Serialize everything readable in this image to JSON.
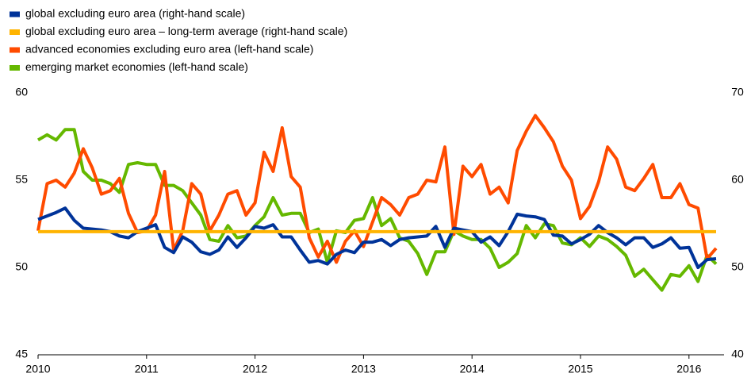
{
  "chart_data": {
    "type": "line",
    "categories": [
      "2010",
      null,
      null,
      null,
      null,
      null,
      null,
      null,
      null,
      null,
      null,
      null,
      "2011",
      null,
      null,
      null,
      null,
      null,
      null,
      null,
      null,
      null,
      null,
      null,
      "2012",
      null,
      null,
      null,
      null,
      null,
      null,
      null,
      null,
      null,
      null,
      null,
      "2013",
      null,
      null,
      null,
      null,
      null,
      null,
      null,
      null,
      null,
      null,
      null,
      "2014",
      null,
      null,
      null,
      null,
      null,
      null,
      null,
      null,
      null,
      null,
      null,
      "2015",
      null,
      null,
      null,
      null,
      null,
      null,
      null,
      null,
      null,
      null,
      null,
      "2016",
      null,
      null,
      null
    ],
    "ylim": [
      45,
      60
    ],
    "yticks": [
      45,
      50,
      55,
      60
    ],
    "y2lim": [
      40,
      70
    ],
    "y2ticks": [
      40,
      50,
      60,
      70
    ],
    "legend": "top-left",
    "series": [
      {
        "name": "global excluding euro area (right-hand scale)",
        "color": "#003399",
        "axis": "y2",
        "values": [
          55.5,
          55.9,
          56.3,
          56.8,
          55.4,
          54.5,
          54.4,
          54.3,
          54.1,
          53.6,
          53.4,
          54.1,
          54.5,
          54.9,
          52.3,
          51.7,
          53.5,
          52.9,
          51.8,
          51.5,
          52.0,
          53.5,
          52.3,
          53.4,
          54.7,
          54.5,
          54.9,
          53.5,
          53.5,
          52.0,
          50.6,
          50.8,
          50.4,
          51.5,
          52.0,
          51.7,
          52.9,
          52.9,
          53.2,
          52.5,
          53.2,
          53.4,
          53.5,
          53.6,
          54.7,
          52.3,
          54.5,
          54.3,
          54.1,
          52.9,
          53.5,
          52.5,
          54.1,
          56.1,
          55.9,
          55.8,
          55.5,
          53.7,
          53.6,
          52.7,
          53.2,
          53.8,
          54.8,
          54.0,
          53.4,
          52.6,
          53.4,
          53.4,
          52.3,
          52.7,
          53.4,
          52.2,
          52.3,
          50.0,
          50.9,
          51.0
        ]
      },
      {
        "name": "global excluding euro area – long-term average (right-hand scale)",
        "color": "#ffb400",
        "axis": "y2",
        "values": [
          54.1,
          54.1,
          54.1,
          54.1,
          54.1,
          54.1,
          54.1,
          54.1,
          54.1,
          54.1,
          54.1,
          54.1,
          54.1,
          54.1,
          54.1,
          54.1,
          54.1,
          54.1,
          54.1,
          54.1,
          54.1,
          54.1,
          54.1,
          54.1,
          54.1,
          54.1,
          54.1,
          54.1,
          54.1,
          54.1,
          54.1,
          54.1,
          54.1,
          54.1,
          54.1,
          54.1,
          54.1,
          54.1,
          54.1,
          54.1,
          54.1,
          54.1,
          54.1,
          54.1,
          54.1,
          54.1,
          54.1,
          54.1,
          54.1,
          54.1,
          54.1,
          54.1,
          54.1,
          54.1,
          54.1,
          54.1,
          54.1,
          54.1,
          54.1,
          54.1,
          54.1,
          54.1,
          54.1,
          54.1,
          54.1,
          54.1,
          54.1,
          54.1,
          54.1,
          54.1,
          54.1,
          54.1,
          54.1,
          54.1,
          54.1,
          54.1
        ]
      },
      {
        "name": "advanced economies excluding euro area (left-hand scale)",
        "color": "#ff4b00",
        "axis": "y",
        "values": [
          52.1,
          54.8,
          55.0,
          54.6,
          55.4,
          56.8,
          55.7,
          54.2,
          54.4,
          55.1,
          53.1,
          52.0,
          52.1,
          53.0,
          55.5,
          51.0,
          52.1,
          54.8,
          54.2,
          52.1,
          53.0,
          54.2,
          54.4,
          53.0,
          53.7,
          56.6,
          55.5,
          58.0,
          55.2,
          54.6,
          51.7,
          50.6,
          51.5,
          50.3,
          51.5,
          52.1,
          51.2,
          52.6,
          54.0,
          53.6,
          53.0,
          54.0,
          54.2,
          55.0,
          54.9,
          56.9,
          51.9,
          55.8,
          55.2,
          55.9,
          54.2,
          54.6,
          53.7,
          56.7,
          57.8,
          58.7,
          58.0,
          57.2,
          55.8,
          55.0,
          52.8,
          53.5,
          54.9,
          56.9,
          56.2,
          54.6,
          54.4,
          55.1,
          55.9,
          54.0,
          54.0,
          54.8,
          53.6,
          53.4,
          50.5,
          51.1
        ]
      },
      {
        "name": "emerging market economies (left-hand scale)",
        "color": "#65b800",
        "axis": "y",
        "values": [
          57.3,
          57.6,
          57.3,
          57.9,
          57.9,
          55.5,
          55.0,
          55.0,
          54.8,
          54.3,
          55.9,
          56.0,
          55.9,
          55.9,
          54.7,
          54.7,
          54.4,
          53.7,
          53.0,
          51.6,
          51.5,
          52.4,
          51.7,
          51.8,
          52.4,
          52.9,
          54.0,
          53.0,
          53.1,
          53.1,
          52.0,
          52.2,
          50.3,
          52.1,
          52.0,
          52.7,
          52.8,
          54.0,
          52.4,
          52.8,
          51.7,
          51.5,
          50.8,
          49.6,
          50.9,
          50.9,
          52.1,
          51.8,
          51.6,
          51.6,
          51.1,
          50.0,
          50.3,
          50.8,
          52.4,
          51.7,
          52.5,
          52.4,
          51.4,
          51.3,
          51.7,
          51.2,
          51.8,
          51.6,
          51.2,
          50.7,
          49.5,
          49.9,
          49.3,
          48.7,
          49.6,
          49.5,
          50.1,
          49.2,
          50.7,
          50.2
        ]
      }
    ]
  }
}
